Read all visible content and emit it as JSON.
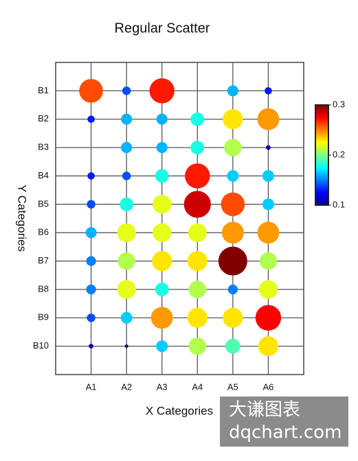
{
  "chart_data": {
    "type": "scatter",
    "title": "Regular Scatter",
    "x_label": "X Categories",
    "y_label": "Y Categories",
    "x_categories": [
      "A1",
      "A2",
      "A3",
      "A4",
      "A5",
      "A6"
    ],
    "y_categories": [
      "B1",
      "B2",
      "B3",
      "B4",
      "B5",
      "B6",
      "B7",
      "B8",
      "B9",
      "B10"
    ],
    "values": [
      [
        0.26,
        0.14,
        0.27,
        null,
        0.16,
        0.13
      ],
      [
        0.13,
        0.16,
        0.16,
        0.18,
        0.23,
        0.245
      ],
      [
        null,
        0.16,
        0.16,
        0.18,
        0.21,
        0.11
      ],
      [
        0.13,
        0.14,
        0.18,
        0.27,
        0.165,
        0.165
      ],
      [
        0.14,
        0.18,
        0.22,
        0.285,
        0.26,
        0.165
      ],
      [
        0.16,
        0.22,
        0.22,
        0.22,
        0.245,
        0.245
      ],
      [
        0.15,
        0.21,
        0.23,
        0.23,
        0.3,
        0.21
      ],
      [
        0.15,
        0.22,
        0.18,
        0.21,
        0.15,
        0.22
      ],
      [
        0.14,
        0.165,
        0.245,
        0.23,
        0.23,
        0.275
      ],
      [
        0.11,
        0.1,
        0.165,
        0.21,
        0.19,
        0.23
      ]
    ],
    "colormap": "jet",
    "clim": [
      0.1,
      0.3
    ],
    "cticks": [
      0.1,
      0.2,
      0.3
    ],
    "grid": true,
    "watermark": [
      "大谦图表",
      "dqchart.com"
    ]
  }
}
